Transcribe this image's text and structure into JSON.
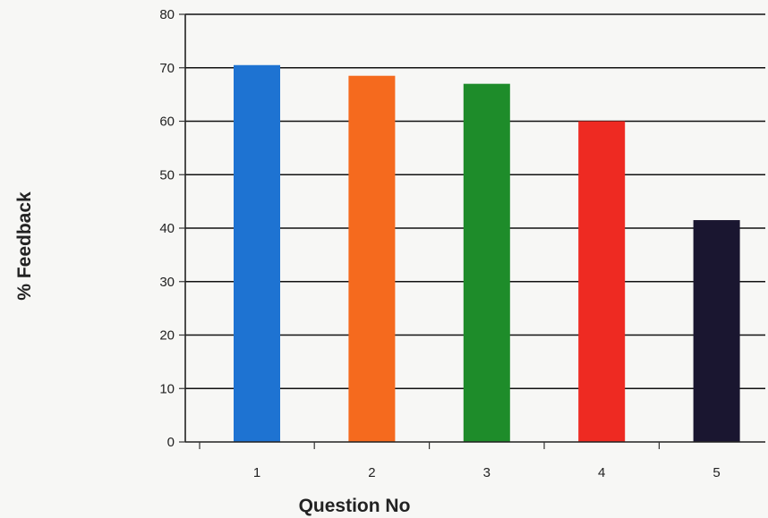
{
  "chart_data": {
    "type": "bar",
    "title": "",
    "xlabel": "Question No",
    "ylabel": "% Feedback",
    "categories": [
      "1",
      "2",
      "3",
      "4",
      "5"
    ],
    "values": [
      70.5,
      68.5,
      67,
      60,
      41.5
    ],
    "colors": [
      "#1e73d2",
      "#f56a1e",
      "#1e8c2a",
      "#ee2a22",
      "#1a1630"
    ],
    "ylim": [
      0,
      80
    ],
    "yticks": [
      "0",
      "10",
      "20",
      "30",
      "40",
      "50",
      "60",
      "70",
      "80"
    ],
    "grid": true,
    "legend": "none"
  }
}
